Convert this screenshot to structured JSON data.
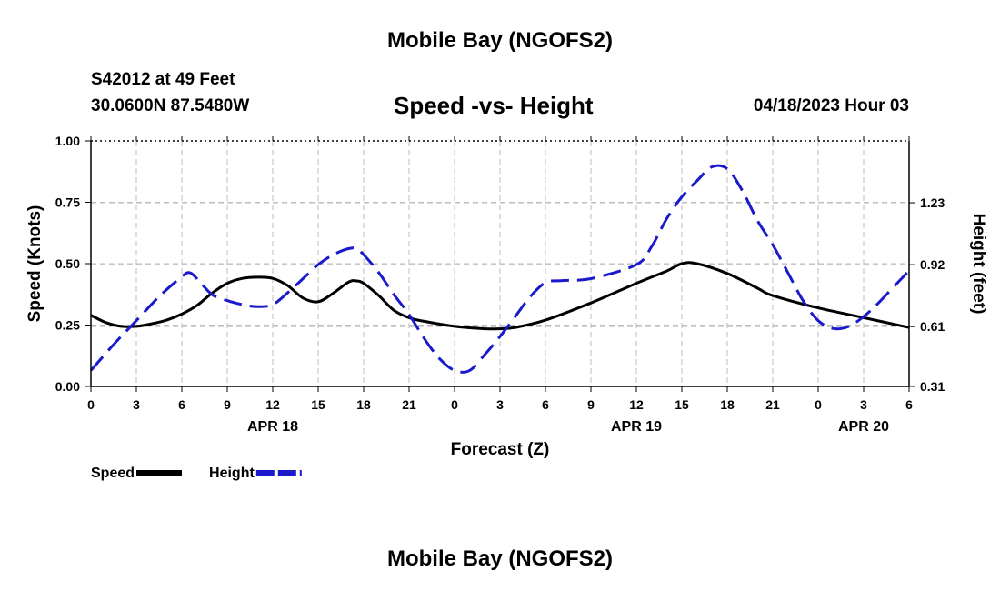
{
  "header": {
    "title": "Mobile Bay (NGOFS2)",
    "station": "S42012 at 49 Feet",
    "coords": "30.0600N  87.5480W",
    "plot_title": "Speed -vs- Height",
    "datetime": "04/18/2023 Hour 03",
    "footer_title": "Mobile Bay (NGOFS2)"
  },
  "chart_data": {
    "type": "line",
    "title": "Speed -vs- Height",
    "xlabel": "Forecast (Z)",
    "ylabel_left": "Speed (Knots)",
    "ylabel_right": "Height (feet)",
    "x_range_hours": [
      0,
      54
    ],
    "xticks": [
      {
        "h": 0,
        "label": "0"
      },
      {
        "h": 3,
        "label": "3"
      },
      {
        "h": 6,
        "label": "6"
      },
      {
        "h": 9,
        "label": "9"
      },
      {
        "h": 12,
        "label": "12"
      },
      {
        "h": 15,
        "label": "15"
      },
      {
        "h": 18,
        "label": "18"
      },
      {
        "h": 21,
        "label": "21"
      },
      {
        "h": 24,
        "label": "0"
      },
      {
        "h": 27,
        "label": "3"
      },
      {
        "h": 30,
        "label": "6"
      },
      {
        "h": 33,
        "label": "9"
      },
      {
        "h": 36,
        "label": "12"
      },
      {
        "h": 39,
        "label": "15"
      },
      {
        "h": 42,
        "label": "18"
      },
      {
        "h": 45,
        "label": "21"
      },
      {
        "h": 48,
        "label": "0"
      },
      {
        "h": 51,
        "label": "3"
      },
      {
        "h": 54,
        "label": "6"
      }
    ],
    "date_labels": [
      {
        "h": 12,
        "label": "APR 18"
      },
      {
        "h": 36,
        "label": "APR 19"
      },
      {
        "h": 51,
        "label": "APR 20"
      }
    ],
    "ylim_left": [
      0,
      1
    ],
    "yticks_left": [
      "0.00",
      "0.25",
      "0.50",
      "0.75",
      "1.00"
    ],
    "ylim_right": [
      0.31,
      1.54
    ],
    "yticks_right": [
      0.31,
      0.61,
      0.92,
      1.23
    ],
    "grid": true,
    "series": [
      {
        "name": "Speed",
        "color": "#000000",
        "style": "solid",
        "axis": "left",
        "x": [
          0,
          1,
          2,
          3,
          4,
          5,
          6,
          7,
          8,
          9,
          10,
          11,
          12,
          13,
          14,
          15,
          16,
          17,
          17.5,
          18,
          19,
          20,
          21,
          22,
          24,
          26,
          27,
          28,
          30,
          33,
          36,
          38,
          39,
          40,
          42,
          44,
          45,
          48,
          51,
          54
        ],
        "y": [
          0.29,
          0.26,
          0.245,
          0.245,
          0.255,
          0.27,
          0.295,
          0.33,
          0.38,
          0.42,
          0.44,
          0.445,
          0.44,
          0.41,
          0.36,
          0.345,
          0.38,
          0.425,
          0.43,
          0.42,
          0.37,
          0.31,
          0.28,
          0.265,
          0.245,
          0.235,
          0.235,
          0.24,
          0.27,
          0.34,
          0.42,
          0.47,
          0.5,
          0.5,
          0.46,
          0.4,
          0.37,
          0.32,
          0.28,
          0.24
        ]
      },
      {
        "name": "Height",
        "color": "#1a1acc",
        "style": "dashed",
        "axis": "right",
        "x": [
          0,
          1.5,
          3,
          4.5,
          6,
          6.5,
          7,
          8,
          9,
          10,
          11,
          12,
          13,
          14,
          15,
          16,
          17,
          17.5,
          18,
          19,
          20,
          21,
          22,
          23,
          24,
          25,
          26,
          27,
          28,
          29,
          30,
          31,
          33,
          36,
          37,
          38,
          39,
          40,
          41,
          42,
          43,
          44,
          45,
          46,
          47,
          48,
          49,
          50,
          51,
          52,
          53,
          54
        ],
        "y": [
          0.39,
          0.52,
          0.64,
          0.76,
          0.86,
          0.88,
          0.85,
          0.77,
          0.74,
          0.72,
          0.71,
          0.72,
          0.78,
          0.85,
          0.92,
          0.97,
          1.0,
          1.0,
          0.97,
          0.88,
          0.77,
          0.67,
          0.55,
          0.45,
          0.39,
          0.39,
          0.47,
          0.56,
          0.66,
          0.76,
          0.83,
          0.84,
          0.85,
          0.92,
          1.01,
          1.15,
          1.26,
          1.34,
          1.41,
          1.4,
          1.29,
          1.14,
          1.02,
          0.88,
          0.74,
          0.64,
          0.6,
          0.61,
          0.66,
          0.73,
          0.81,
          0.89
        ]
      }
    ],
    "legend": [
      {
        "label": "Speed",
        "color": "#000000",
        "style": "solid"
      },
      {
        "label": "Height",
        "color": "#1a1acc",
        "style": "dashed"
      }
    ]
  }
}
